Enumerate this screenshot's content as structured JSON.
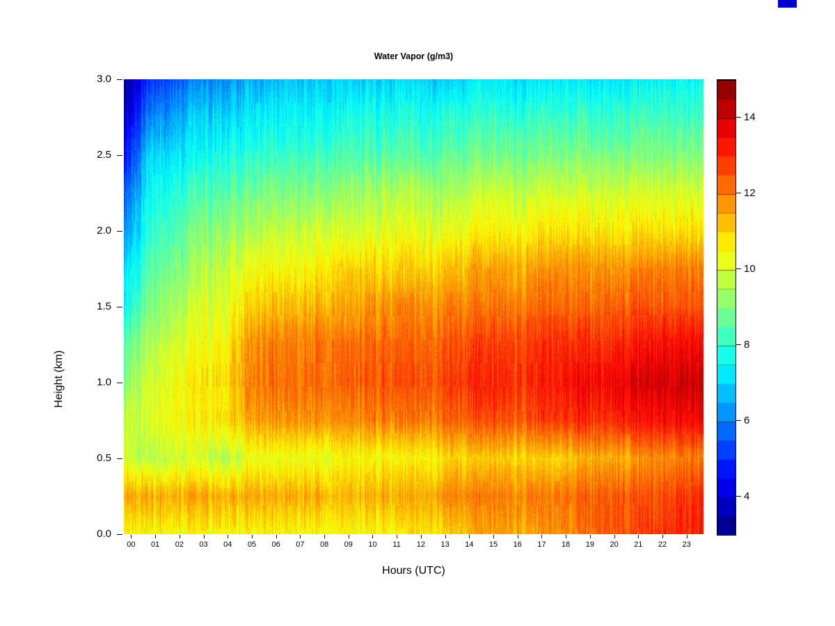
{
  "colors": {
    "background": "#ffffff",
    "text": "#000000",
    "swatch": "#0000cd"
  },
  "chart_data": {
    "type": "heatmap",
    "title": "Water Vapor (g/m3)",
    "xlabel": "Hours (UTC)",
    "ylabel": "Height (km)",
    "x_tick_labels": [
      "00",
      "01",
      "02",
      "03",
      "04",
      "05",
      "06",
      "07",
      "08",
      "09",
      "10",
      "11",
      "12",
      "13",
      "14",
      "15",
      "16",
      "17",
      "18",
      "19",
      "20",
      "21",
      "22",
      "23"
    ],
    "y_tick_labels": [
      "0.0",
      "0.5",
      "1.0",
      "1.5",
      "2.0",
      "2.5",
      "3.0"
    ],
    "x_range": [
      0,
      24
    ],
    "y_range": [
      0,
      3
    ],
    "value_range": [
      3,
      15
    ],
    "contour_step": 0.5,
    "colormap": "jet",
    "colorbar_ticks": [
      4,
      6,
      8,
      10,
      12,
      14
    ],
    "hours": [
      0,
      1,
      2,
      3,
      4,
      5,
      6,
      7,
      8,
      9,
      10,
      11,
      12,
      13,
      14,
      15,
      16,
      17,
      18,
      19,
      20,
      21,
      22,
      23
    ],
    "heights": [
      0,
      0.25,
      0.5,
      0.75,
      1.0,
      1.25,
      1.5,
      1.75,
      2.0,
      2.25,
      2.5,
      2.75,
      3.0
    ],
    "values": [
      [
        10.5,
        10.5,
        10.5,
        10.5,
        10.5,
        10.5,
        10.5,
        10.5,
        10.5,
        10.5,
        10.5,
        10.5,
        10.8,
        11.0,
        11.5,
        11.5,
        11.5,
        11.8,
        12.0,
        12.5,
        12.5,
        12.8,
        13.0,
        13.2
      ],
      [
        11.5,
        11.5,
        11.5,
        11.5,
        11.5,
        11.5,
        11.5,
        11.5,
        11.5,
        11.3,
        11.5,
        11.5,
        11.5,
        12.0,
        12.0,
        12.0,
        12.0,
        12.0,
        12.3,
        12.5,
        12.5,
        12.5,
        12.8,
        13.0
      ],
      [
        10.0,
        9.5,
        10.0,
        10.0,
        9.5,
        10.3,
        10.3,
        10.3,
        10.3,
        10.5,
        10.5,
        10.5,
        10.5,
        11.0,
        11.0,
        11.0,
        11.0,
        11.0,
        11.3,
        11.5,
        11.5,
        11.8,
        12.0,
        12.0
      ],
      [
        9.8,
        10.0,
        10.5,
        10.5,
        10.8,
        11.5,
        11.8,
        11.8,
        11.8,
        11.8,
        12.0,
        12.0,
        12.0,
        12.3,
        12.5,
        12.5,
        12.5,
        12.8,
        13.0,
        13.0,
        13.2,
        13.3,
        13.5,
        13.5
      ],
      [
        9.0,
        10.0,
        10.5,
        10.7,
        10.8,
        12.0,
        12.2,
        12.2,
        12.3,
        12.4,
        12.5,
        12.5,
        12.5,
        12.8,
        13.0,
        13.0,
        13.0,
        13.2,
        13.5,
        13.5,
        13.8,
        14.0,
        14.0,
        14.2
      ],
      [
        8.5,
        9.5,
        10.0,
        10.3,
        10.5,
        11.8,
        12.0,
        12.0,
        12.2,
        12.2,
        12.3,
        12.3,
        12.3,
        12.5,
        12.7,
        12.7,
        12.8,
        13.0,
        13.0,
        13.0,
        13.2,
        13.3,
        13.5,
        13.5
      ],
      [
        7.5,
        9.0,
        9.5,
        10.0,
        10.2,
        11.0,
        11.3,
        11.3,
        11.5,
        11.5,
        11.8,
        11.8,
        11.8,
        12.0,
        12.0,
        12.0,
        12.2,
        12.3,
        12.3,
        12.3,
        12.5,
        12.5,
        12.5,
        12.5
      ],
      [
        7.0,
        8.5,
        9.0,
        9.5,
        9.8,
        10.3,
        10.5,
        10.5,
        10.8,
        11.0,
        11.0,
        11.0,
        11.0,
        11.3,
        11.5,
        11.5,
        11.5,
        11.8,
        11.8,
        11.8,
        11.8,
        12.0,
        12.0,
        12.0
      ],
      [
        6.0,
        8.0,
        8.5,
        9.0,
        9.2,
        9.5,
        9.8,
        9.8,
        10.0,
        10.0,
        10.2,
        10.2,
        10.2,
        10.3,
        10.5,
        10.5,
        10.5,
        10.8,
        10.8,
        10.8,
        10.8,
        10.8,
        10.8,
        10.8
      ],
      [
        5.5,
        7.5,
        8.0,
        8.3,
        8.5,
        8.8,
        9.0,
        9.0,
        9.2,
        9.3,
        9.5,
        9.5,
        9.5,
        9.5,
        9.8,
        9.8,
        9.8,
        10.0,
        10.0,
        10.0,
        10.0,
        10.0,
        10.0,
        10.0
      ],
      [
        4.5,
        7.0,
        7.3,
        7.5,
        7.8,
        8.0,
        8.2,
        8.2,
        8.3,
        8.5,
        8.5,
        8.5,
        8.5,
        8.7,
        8.8,
        8.8,
        8.8,
        9.0,
        9.0,
        9.0,
        9.0,
        9.0,
        9.0,
        9.0
      ],
      [
        3.8,
        6.0,
        6.5,
        7.0,
        7.0,
        7.3,
        7.5,
        7.5,
        7.5,
        7.8,
        7.8,
        7.8,
        7.8,
        8.0,
        8.0,
        8.0,
        8.0,
        8.2,
        8.2,
        8.2,
        8.2,
        8.3,
        8.3,
        8.3
      ],
      [
        3.0,
        5.0,
        5.5,
        6.0,
        6.2,
        6.5,
        6.8,
        6.8,
        7.0,
        7.0,
        7.0,
        7.0,
        7.0,
        7.0,
        7.2,
        7.2,
        7.2,
        7.3,
        7.3,
        7.3,
        7.3,
        7.5,
        7.5,
        7.5
      ]
    ]
  }
}
